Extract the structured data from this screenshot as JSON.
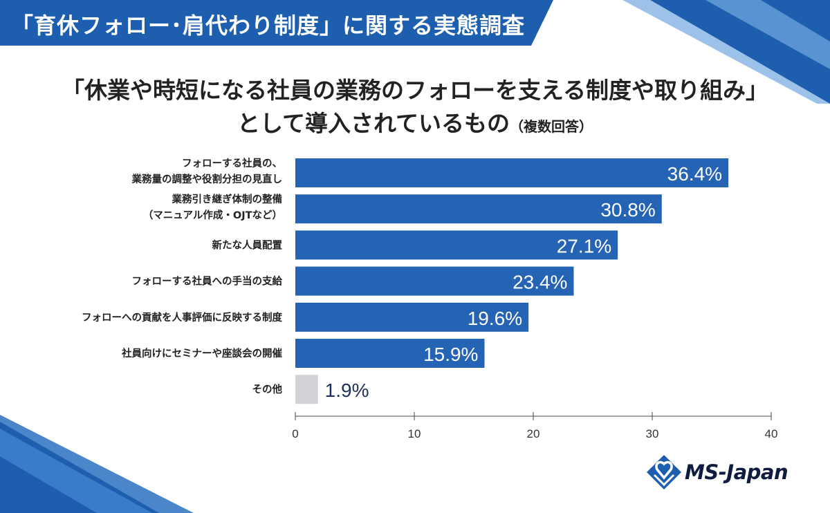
{
  "header": {
    "banner": "「育休フォロー･肩代わり制度」に関する実態調査"
  },
  "chart_data": {
    "type": "bar",
    "orientation": "horizontal",
    "title_line1": "「休業や時短になる社員の業務のフォローを支える制度や取り組み」",
    "title_line2": "として導入されているもの",
    "title_note": "（複数回答）",
    "categories": [
      [
        "フォローする社員の、",
        "業務量の調整や役割分担の見直し"
      ],
      [
        "業務引き継ぎ体制の整備",
        "（マニュアル作成・OJTなど）"
      ],
      [
        "新たな人員配置"
      ],
      [
        "フォローする社員への手当の支給"
      ],
      [
        "フォローへの貢献を人事評価に反映する制度"
      ],
      [
        "社員向けにセミナーや座談会の開催"
      ],
      [
        "その他"
      ]
    ],
    "values": [
      36.4,
      30.8,
      27.1,
      23.4,
      19.6,
      15.9,
      1.9
    ],
    "value_labels": [
      "36.4%",
      "30.8%",
      "27.1%",
      "23.4%",
      "19.6%",
      "15.9%",
      "1.9%"
    ],
    "colors": [
      "#2563b4",
      "#2563b4",
      "#2563b4",
      "#2563b4",
      "#2563b4",
      "#2563b4",
      "#d2d2d6"
    ],
    "label_color_inside": "#ffffff",
    "label_color_outside": "#1e2f5e",
    "xlim": [
      0,
      40
    ],
    "xticks": [
      "0",
      "10",
      "20",
      "30",
      "40"
    ],
    "xlabel": "",
    "ylabel": ""
  },
  "branding": {
    "logo_text": "MS-Japan",
    "accent": "#1d5fae"
  }
}
